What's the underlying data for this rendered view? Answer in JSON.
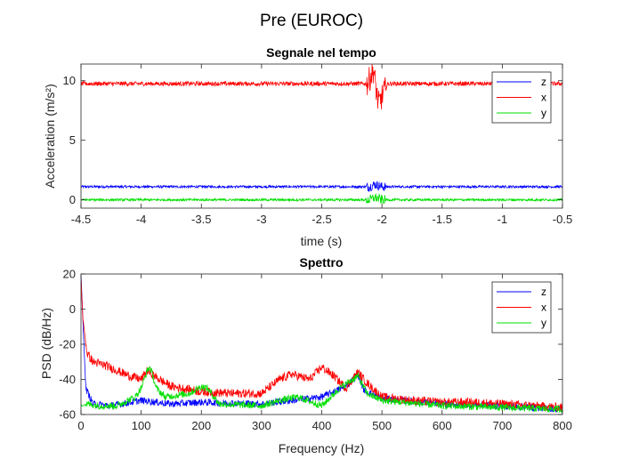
{
  "figure": {
    "title": "Pre (EUROC)"
  },
  "chart_data": [
    {
      "type": "line",
      "title": "Segnale nel tempo",
      "xlabel": "time (s)",
      "ylabel": "Acceleration (m/s²)",
      "xlim": [
        -4.5,
        -0.5
      ],
      "ylim": [
        -0.7,
        11.4
      ],
      "xticks": [
        -4.5,
        -4,
        -3.5,
        -3,
        -2.5,
        -2,
        -1.5,
        -1,
        -0.5
      ],
      "xtick_labels": [
        "-4.5",
        "-4",
        "-3.5",
        "-3",
        "-2.5",
        "-2",
        "-1.5",
        "-1",
        "-0.5"
      ],
      "yticks": [
        0,
        5,
        10
      ],
      "ytick_labels": [
        "0",
        "5",
        "10"
      ],
      "grid": false,
      "legend_position": "top-right",
      "series": [
        {
          "name": "z",
          "color": "#0000ff",
          "x": [
            -4.5,
            -2.1,
            -2.06,
            -2.0,
            -0.5
          ],
          "y": [
            1.1,
            1.1,
            1.3,
            1.1,
            1.1
          ]
        },
        {
          "name": "x",
          "color": "#ff0000",
          "x": [
            -4.5,
            -2.12,
            -2.07,
            -2.03,
            -1.95,
            -0.5
          ],
          "y": [
            9.75,
            9.75,
            10.9,
            8.0,
            9.75,
            9.75
          ]
        },
        {
          "name": "y",
          "color": "#00e000",
          "x": [
            -4.5,
            -2.1,
            -2.06,
            -2.0,
            -0.5
          ],
          "y": [
            0.0,
            0.0,
            0.2,
            0.0,
            0.0
          ]
        }
      ]
    },
    {
      "type": "line",
      "title": "Spettro",
      "xlabel": "Frequency (Hz)",
      "ylabel": "PSD (dB/Hz)",
      "xlim": [
        0,
        800
      ],
      "ylim": [
        -60,
        20
      ],
      "xticks": [
        0,
        100,
        200,
        300,
        400,
        500,
        600,
        700,
        800
      ],
      "xtick_labels": [
        "0",
        "100",
        "200",
        "300",
        "400",
        "500",
        "600",
        "700",
        "800"
      ],
      "yticks": [
        -60,
        -40,
        -20,
        0,
        20
      ],
      "ytick_labels": [
        "-60",
        "-40",
        "-20",
        "0",
        "20"
      ],
      "grid": false,
      "legend_position": "top-right",
      "series": [
        {
          "name": "z",
          "color": "#0000ff",
          "x": [
            0,
            3,
            8,
            20,
            50,
            100,
            150,
            200,
            300,
            350,
            400,
            440,
            460,
            470,
            500,
            600,
            700,
            800
          ],
          "y": [
            20,
            -5,
            -45,
            -54,
            -55,
            -52,
            -54,
            -53,
            -54,
            -52,
            -50,
            -44,
            -37,
            -46,
            -51,
            -54,
            -55,
            -57
          ]
        },
        {
          "name": "x",
          "color": "#ff0000",
          "x": [
            0,
            3,
            10,
            20,
            40,
            60,
            80,
            100,
            110,
            130,
            150,
            200,
            250,
            300,
            330,
            350,
            380,
            400,
            420,
            440,
            460,
            475,
            500,
            550,
            600,
            650,
            700,
            750,
            800
          ],
          "y": [
            18,
            -5,
            -25,
            -30,
            -32,
            -35,
            -38,
            -40,
            -35,
            -40,
            -44,
            -47,
            -48,
            -48,
            -40,
            -37,
            -40,
            -33,
            -38,
            -45,
            -36,
            -42,
            -50,
            -52,
            -53,
            -53,
            -54,
            -55,
            -56
          ]
        },
        {
          "name": "y",
          "color": "#00e000",
          "x": [
            0,
            10,
            30,
            60,
            90,
            100,
            110,
            115,
            125,
            140,
            180,
            200,
            210,
            230,
            300,
            330,
            360,
            400,
            430,
            460,
            475,
            500,
            600,
            700,
            800
          ],
          "y": [
            -55,
            -54,
            -55,
            -55,
            -50,
            -45,
            -35,
            -33,
            -45,
            -50,
            -48,
            -44,
            -45,
            -54,
            -55,
            -52,
            -50,
            -55,
            -45,
            -38,
            -48,
            -52,
            -55,
            -56,
            -57
          ]
        }
      ]
    }
  ]
}
